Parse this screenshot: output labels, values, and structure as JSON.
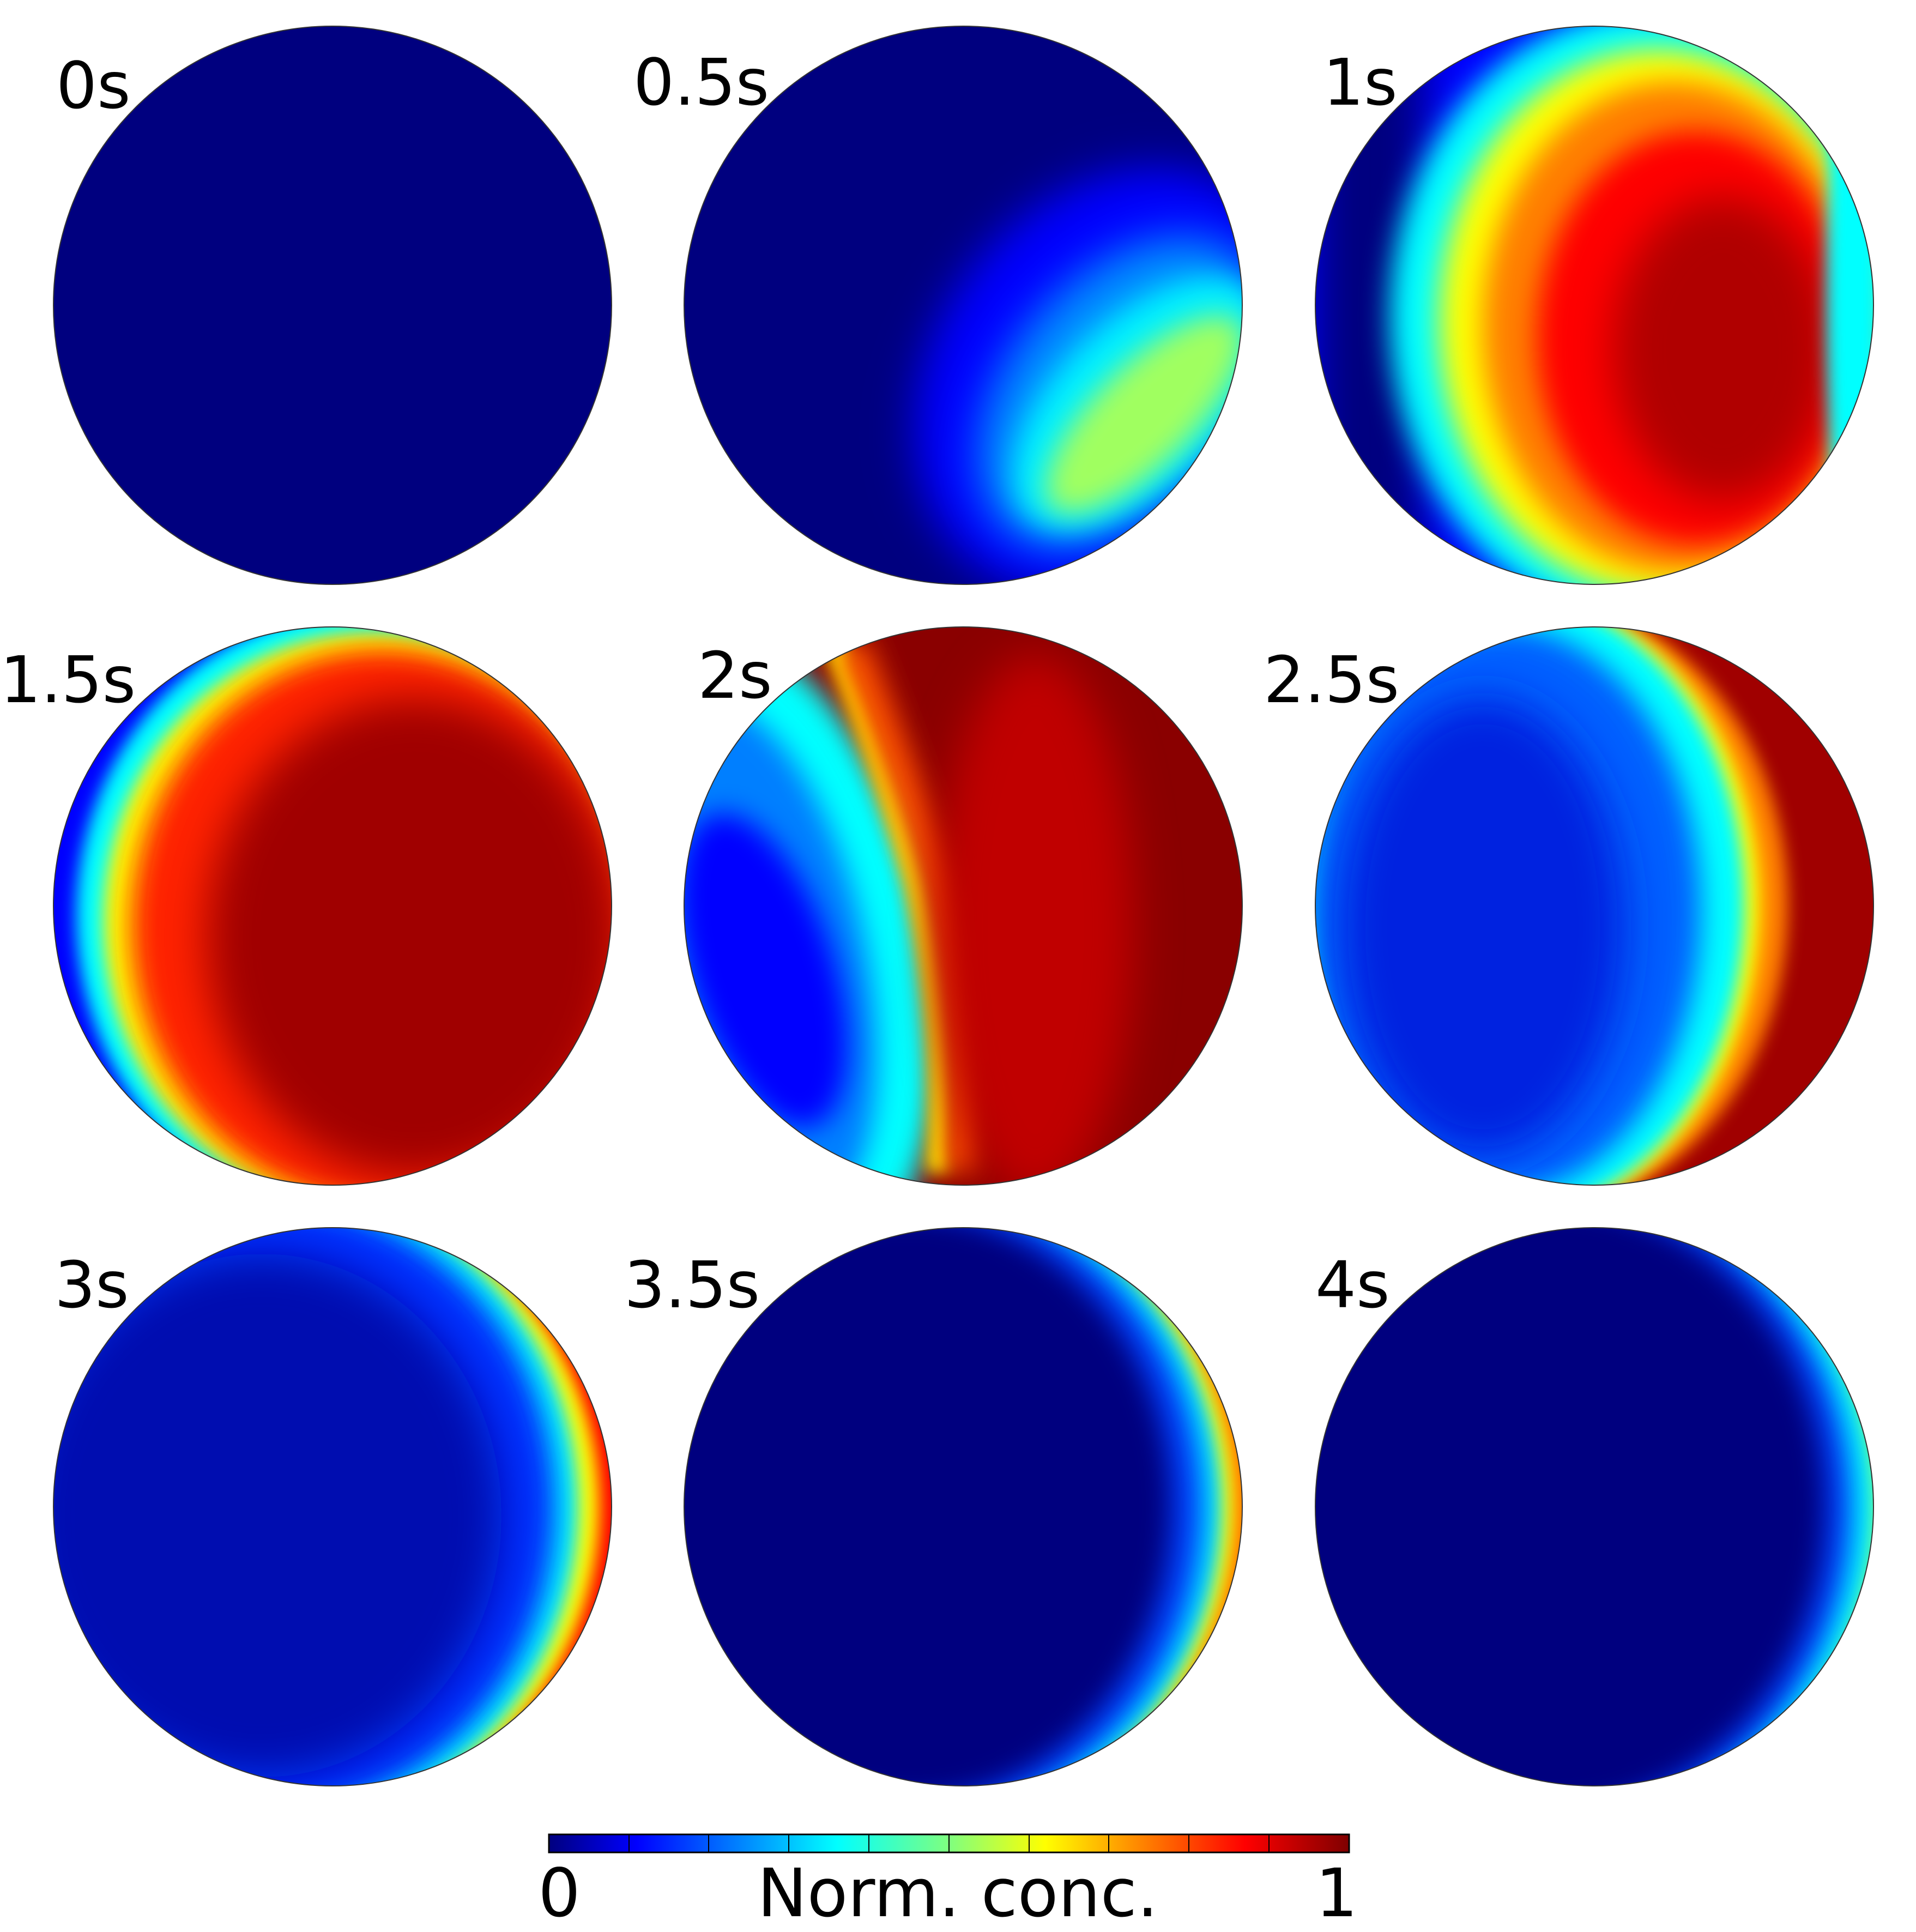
{
  "panels": [
    {
      "time": "0s",
      "label_side": "left"
    },
    {
      "time": "0.5s",
      "label_side": "left"
    },
    {
      "time": "1s",
      "label_side": "left"
    },
    {
      "time": "1.5s",
      "label_side": "left"
    },
    {
      "time": "2s",
      "label_side": "left"
    },
    {
      "time": "2.5s",
      "label_side": "left"
    },
    {
      "time": "3s",
      "label_side": "left"
    },
    {
      "time": "3.5s",
      "label_side": "left"
    },
    {
      "time": "4s",
      "label_side": "left"
    }
  ],
  "colorbar": {
    "title": "Norm. conc.",
    "min_label": "0",
    "max_label": "1",
    "colormap": "jet",
    "stops": [
      "#00007f",
      "#0000ff",
      "#007fff",
      "#00ffff",
      "#7fff7f",
      "#ffff00",
      "#ff7f00",
      "#ff0000",
      "#7f0000"
    ]
  }
}
